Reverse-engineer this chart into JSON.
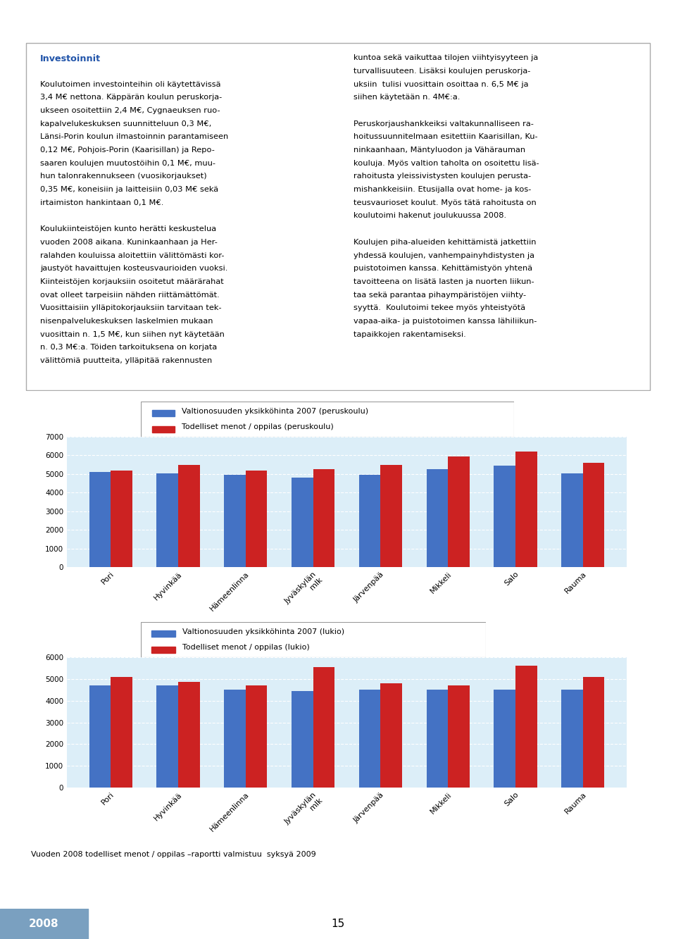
{
  "title": "INVESTOINNIT",
  "title_bg": "#a8c8e0",
  "title_color": "white",
  "page_bg": "#ffffff",
  "content_bg": "#ffffff",
  "chart_outer_bg": "#c0d8ee",
  "chart_inner_bg": "#dceef8",
  "legend_bg": "#ffffff",
  "categories": [
    "Pori",
    "Hyvinkää",
    "Hämeenlinna",
    "Jyväskylän\nmlk",
    "Järvenpää",
    "Mikkeli",
    "Salo",
    "Rauma"
  ],
  "peruskoulu_blue": [
    5100,
    5050,
    4950,
    4800,
    4950,
    5250,
    5450,
    5050
  ],
  "peruskoulu_red": [
    5200,
    5500,
    5200,
    5250,
    5500,
    5950,
    6200,
    5600
  ],
  "lukio_blue": [
    4700,
    4700,
    4500,
    4450,
    4500,
    4500,
    4500,
    4500
  ],
  "lukio_red": [
    5100,
    4850,
    4700,
    5550,
    4800,
    4700,
    5600,
    5100
  ],
  "peruskoulu_legend1": "Valtionosuuden yksikköhinta 2007 (peruskoulu)",
  "peruskoulu_legend2": "Todelliset menot / oppilas (peruskoulu)",
  "lukio_legend1": "Valtionosuuden yksikköhinta 2007 (lukio)",
  "lukio_legend2": "Todelliset menot / oppilas (lukio)",
  "ylim_peruskoulu": [
    0,
    7000
  ],
  "ylim_lukio": [
    0,
    6000
  ],
  "yticks_peruskoulu": [
    0,
    1000,
    2000,
    3000,
    4000,
    5000,
    6000,
    7000
  ],
  "yticks_lukio": [
    0,
    1000,
    2000,
    3000,
    4000,
    5000,
    6000
  ],
  "blue_color": "#4472c4",
  "red_color": "#cc2222",
  "footer_text": "Vuoden 2008 todelliset menot / oppilas –raportti valmistuu  syksyä 2009",
  "year_text": "2008",
  "page_num": "15",
  "border_color": "#aaaaaa",
  "text_fontsize": 8.2,
  "title_fontsize": 14,
  "legend_fontsize": 8.0
}
